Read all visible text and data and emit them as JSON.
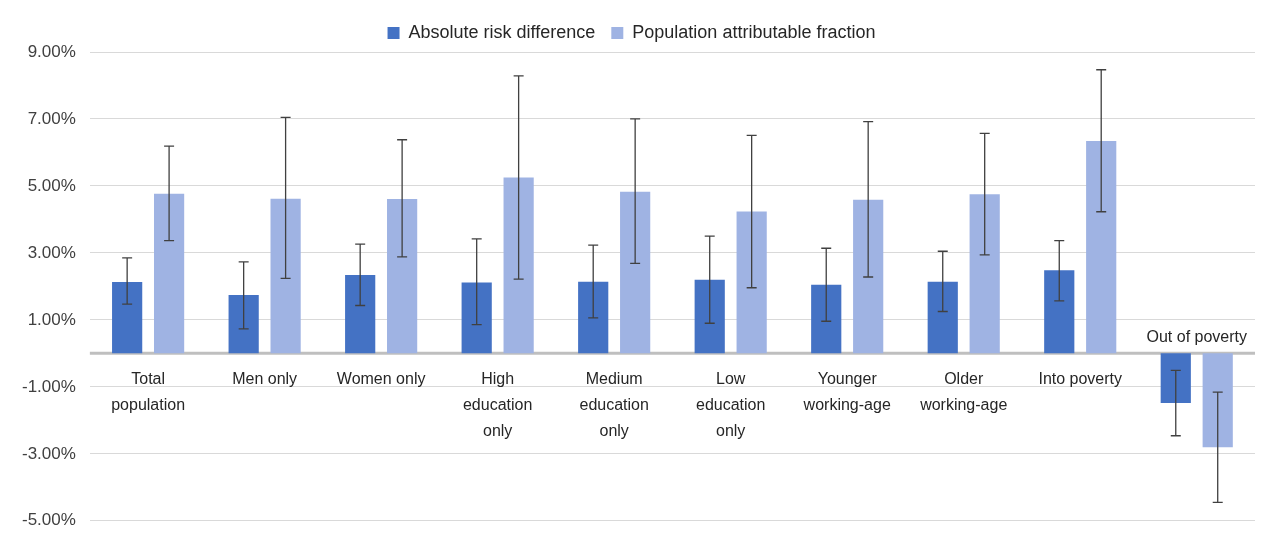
{
  "chart_data": {
    "type": "bar",
    "categories": [
      "Total population",
      "Men only",
      "Women only",
      "High education only",
      "Medium education only",
      "Low education only",
      "Younger working-age",
      "Older working-age",
      "Into poverty",
      "Out of poverty"
    ],
    "series": [
      {
        "name": "Absolute risk difference",
        "color": "#4472c4",
        "values": [
          2.13,
          1.74,
          2.34,
          2.12,
          2.14,
          2.2,
          2.05,
          2.14,
          2.48,
          -1.48
        ],
        "errors": [
          [
            1.47,
            2.85
          ],
          [
            0.73,
            2.73
          ],
          [
            1.43,
            3.26
          ],
          [
            0.86,
            3.42
          ],
          [
            1.06,
            3.23
          ],
          [
            0.9,
            3.5
          ],
          [
            0.96,
            3.14
          ],
          [
            1.25,
            3.05
          ],
          [
            1.57,
            3.37
          ],
          [
            -2.46,
            -0.51
          ]
        ]
      },
      {
        "name": "Population attributable fraction",
        "color": "#9fb3e3",
        "values": [
          4.77,
          4.62,
          4.61,
          5.25,
          4.83,
          4.24,
          4.59,
          4.75,
          6.34,
          -2.8
        ],
        "errors": [
          [
            3.37,
            6.19
          ],
          [
            2.24,
            7.05
          ],
          [
            2.88,
            6.38
          ],
          [
            2.22,
            8.29
          ],
          [
            2.69,
            7.0
          ],
          [
            1.96,
            6.51
          ],
          [
            2.28,
            6.92
          ],
          [
            2.94,
            6.57
          ],
          [
            4.23,
            8.47
          ],
          [
            -4.45,
            -1.16
          ]
        ]
      }
    ],
    "ylim": [
      -5,
      9
    ],
    "yticks": [
      {
        "value": -5,
        "label": "-5.00%"
      },
      {
        "value": -3,
        "label": "-3.00%"
      },
      {
        "value": -1,
        "label": "-1.00%"
      },
      {
        "value": 1,
        "label": "1.00%"
      },
      {
        "value": 3,
        "label": "3.00%"
      },
      {
        "value": 5,
        "label": "5.00%"
      },
      {
        "value": 7,
        "label": "7.00%"
      },
      {
        "value": 9,
        "label": "9.00%"
      }
    ],
    "grid": "y",
    "legend": "top"
  }
}
